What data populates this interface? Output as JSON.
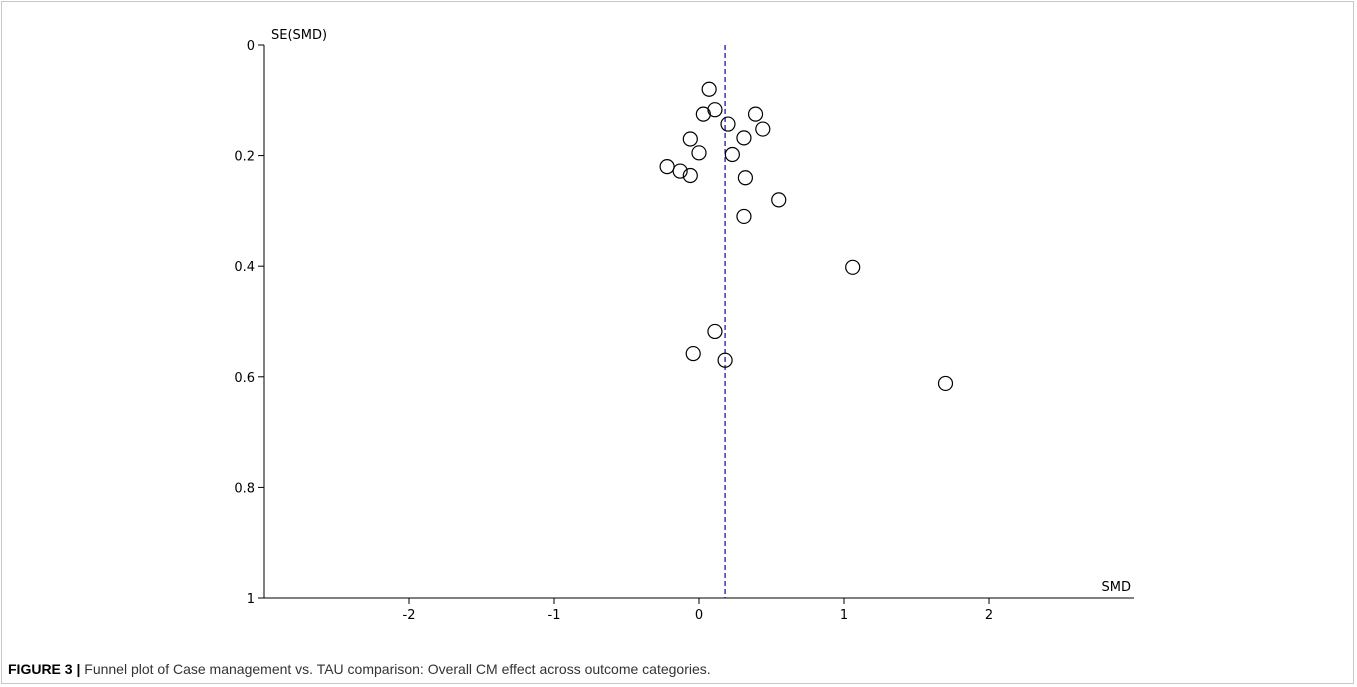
{
  "caption": {
    "label": "FIGURE 3 |",
    "text": "Funnel plot of Case management vs. TAU comparison: Overall CM effect across outcome categories."
  },
  "chart_data": {
    "type": "scatter",
    "xlabel": "SMD",
    "ylabel": "SE(SMD)",
    "xlim": [
      -3,
      3
    ],
    "ylim": [
      0,
      1
    ],
    "y_inverted": true,
    "x_ticks": [
      -2,
      -1,
      0,
      1,
      2
    ],
    "y_ticks": [
      0,
      0.2,
      0.4,
      0.6,
      0.8,
      1
    ],
    "x_tick_labels": [
      "-2",
      "-1",
      "0",
      "1",
      "2"
    ],
    "y_tick_labels": [
      "0",
      "0.2",
      "0.4",
      "0.6",
      "0.8",
      "1"
    ],
    "reference_line": {
      "x": 0.18,
      "style": "dashed",
      "color": "#1a1aa6"
    },
    "marker": "open-circle",
    "points": [
      {
        "x": 0.07,
        "y": 0.08
      },
      {
        "x": 0.11,
        "y": 0.117
      },
      {
        "x": 0.03,
        "y": 0.125
      },
      {
        "x": 0.39,
        "y": 0.125
      },
      {
        "x": 0.2,
        "y": 0.143
      },
      {
        "x": 0.44,
        "y": 0.152
      },
      {
        "x": -0.06,
        "y": 0.17
      },
      {
        "x": 0.31,
        "y": 0.168
      },
      {
        "x": 0.0,
        "y": 0.195
      },
      {
        "x": 0.23,
        "y": 0.198
      },
      {
        "x": -0.22,
        "y": 0.22
      },
      {
        "x": -0.13,
        "y": 0.228
      },
      {
        "x": -0.06,
        "y": 0.236
      },
      {
        "x": 0.32,
        "y": 0.24
      },
      {
        "x": 0.55,
        "y": 0.28
      },
      {
        "x": 0.31,
        "y": 0.31
      },
      {
        "x": 1.06,
        "y": 0.402
      },
      {
        "x": 0.11,
        "y": 0.518
      },
      {
        "x": -0.04,
        "y": 0.558
      },
      {
        "x": 0.18,
        "y": 0.57
      },
      {
        "x": 1.7,
        "y": 0.612
      }
    ]
  }
}
